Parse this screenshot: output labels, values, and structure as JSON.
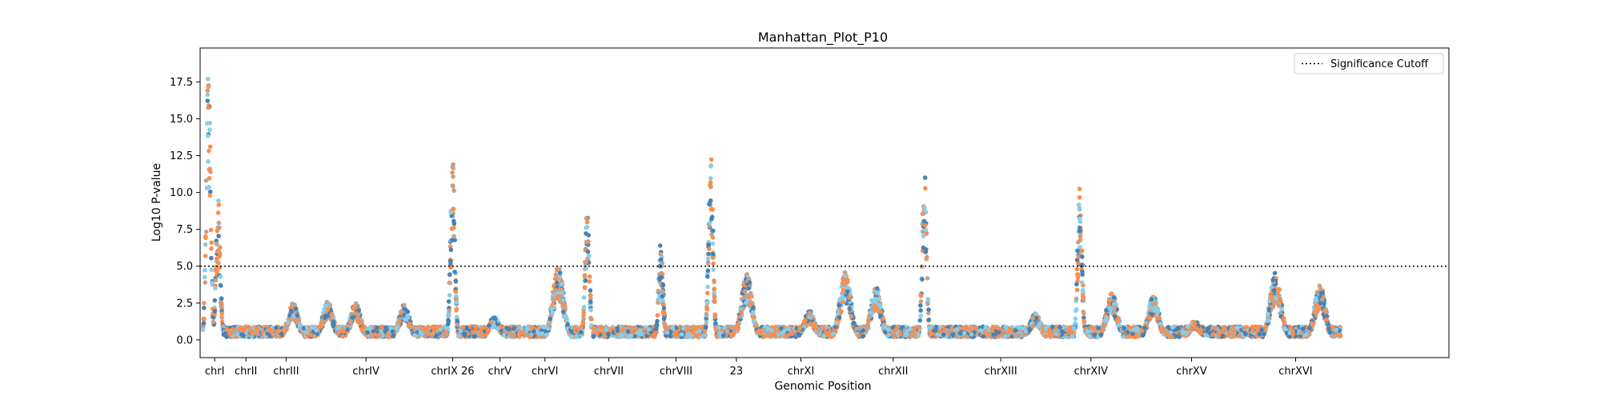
{
  "chart_data": {
    "type": "scatter",
    "title": "Manhattan_Plot_P10",
    "xlabel": "Genomic Position",
    "ylabel": "Log10 P-value",
    "ylim": [
      -1.2,
      19.8
    ],
    "y_ticks": [
      "0.0",
      "2.5",
      "5.0",
      "7.5",
      "10.0",
      "12.5",
      "15.0",
      "17.5"
    ],
    "y_tick_values": [
      0,
      2.5,
      5,
      7.5,
      10,
      12.5,
      15,
      17.5
    ],
    "grid": false,
    "legend": {
      "position": "top-right",
      "entries": [
        "Significance Cutoff"
      ]
    },
    "significance_cutoff": 5.0,
    "series_colors": [
      "#4682b4",
      "#ff8c4a",
      "#87ceeb",
      "#c8a088"
    ],
    "chromosomes": [
      {
        "label": "chrI",
        "start": 0,
        "end": 17,
        "peaks": [
          {
            "at": 4,
            "h": 19.0
          },
          {
            "at": 11,
            "h": 9.5
          }
        ]
      },
      {
        "label": "chrII",
        "start": 17,
        "end": 45,
        "peaks": []
      },
      {
        "label": "chrIII",
        "start": 45,
        "end": 75,
        "peaks": [
          {
            "at": 20,
            "h": 2.5
          }
        ]
      },
      {
        "label": "chrIV",
        "start": 75,
        "end": 160,
        "peaks": [
          {
            "at": 15,
            "h": 2.6
          },
          {
            "at": 35,
            "h": 2.5
          },
          {
            "at": 70,
            "h": 2.4
          }
        ]
      },
      {
        "label": "chrIX 26",
        "start": 160,
        "end": 200,
        "peaks": [
          {
            "at": 20,
            "h": 12.5
          }
        ]
      },
      {
        "label": "chrV",
        "start": 200,
        "end": 228,
        "peaks": [
          {
            "at": 10,
            "h": 1.6
          }
        ]
      },
      {
        "label": "chrVI",
        "start": 228,
        "end": 265,
        "peaks": [
          {
            "at": 28,
            "h": 5.0
          }
        ]
      },
      {
        "label": "chrVII",
        "start": 265,
        "end": 320,
        "peaks": [
          {
            "at": 12,
            "h": 9.3
          }
        ]
      },
      {
        "label": "chrVIII",
        "start": 320,
        "end": 362,
        "peaks": [
          {
            "at": 10,
            "h": 6.7
          }
        ]
      },
      {
        "label": "23",
        "start": 362,
        "end": 407,
        "peaks": [
          {
            "at": 4,
            "h": 13.2
          },
          {
            "at": 30,
            "h": 4.5
          }
        ]
      },
      {
        "label": "chrXI",
        "start": 407,
        "end": 455,
        "peaks": [
          {
            "at": 30,
            "h": 2.0
          }
        ]
      },
      {
        "label": "chrXII",
        "start": 455,
        "end": 540,
        "peaks": [
          {
            "at": 8,
            "h": 4.6
          },
          {
            "at": 30,
            "h": 3.6
          },
          {
            "at": 65,
            "h": 11.9
          }
        ]
      },
      {
        "label": "chrXIII",
        "start": 540,
        "end": 610,
        "peaks": [
          {
            "at": 60,
            "h": 1.8
          }
        ]
      },
      {
        "label": "chrXIV",
        "start": 610,
        "end": 670,
        "peaks": [
          {
            "at": 22,
            "h": 10.6
          },
          {
            "at": 45,
            "h": 3.3
          }
        ]
      },
      {
        "label": "chrXV",
        "start": 670,
        "end": 755,
        "peaks": [
          {
            "at": 15,
            "h": 3.0
          },
          {
            "at": 45,
            "h": 1.3
          }
        ]
      },
      {
        "label": "chrXVI",
        "start": 755,
        "end": 820,
        "peaks": [
          {
            "at": 18,
            "h": 4.6
          },
          {
            "at": 50,
            "h": 3.8
          }
        ]
      }
    ]
  }
}
